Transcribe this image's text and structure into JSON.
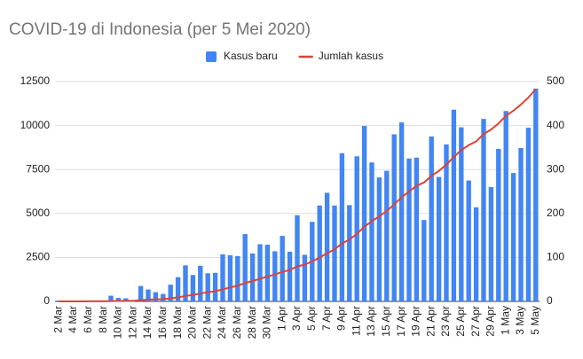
{
  "chart_data": {
    "type": "bar",
    "title": "COVID-19 di Indonesia (per 5 Mei 2020)",
    "categories": [
      "2 Mar",
      null,
      "4 Mar",
      null,
      "6 Mar",
      null,
      "8 Mar",
      null,
      "10 Mar",
      null,
      "12 Mar",
      null,
      "14 Mar",
      null,
      "16 Mar",
      null,
      "18 Mar",
      null,
      "20 Mar",
      null,
      "22 Mar",
      null,
      "24 Mar",
      null,
      "26 Mar",
      null,
      "28 Mar",
      null,
      "30 Mar",
      null,
      "1 Apr",
      null,
      "3 Apr",
      null,
      "5 Apr",
      null,
      "7 Apr",
      null,
      "9 Apr",
      null,
      "11 Apr",
      null,
      "13 Apr",
      null,
      "15 Apr",
      null,
      "17 Apr",
      null,
      "19 Apr",
      null,
      "21 Apr",
      null,
      "23 Apr",
      null,
      "25 Apr",
      null,
      "27 Apr",
      null,
      "29 Apr",
      null,
      "1 May",
      null,
      "3 May",
      null,
      "5 May"
    ],
    "series": [
      {
        "name": "Kasus baru",
        "type": "bar",
        "axis": "y2",
        "color": "#4285f4",
        "values": [
          2,
          0,
          0,
          0,
          2,
          0,
          2,
          13,
          8,
          7,
          0,
          35,
          27,
          21,
          17,
          38,
          55,
          82,
          60,
          81,
          64,
          65,
          107,
          105,
          103,
          153,
          109,
          130,
          129,
          114,
          149,
          113,
          196,
          106,
          181,
          218,
          247,
          218,
          337,
          219,
          330,
          399,
          316,
          282,
          297,
          380,
          407,
          325,
          327,
          185,
          375,
          283,
          357,
          436,
          396,
          275,
          214,
          415,
          260,
          347,
          433,
          292,
          349,
          395,
          484
        ]
      },
      {
        "name": "Jumlah kasus",
        "type": "line",
        "color": "#db4437",
        "values": [
          2,
          2,
          2,
          2,
          4,
          4,
          6,
          19,
          27,
          34,
          34,
          69,
          96,
          117,
          134,
          172,
          227,
          309,
          369,
          450,
          514,
          579,
          686,
          790,
          893,
          1046,
          1155,
          1285,
          1414,
          1528,
          1677,
          1790,
          1986,
          2092,
          2273,
          2491,
          2738,
          2956,
          3293,
          3512,
          3842,
          4241,
          4557,
          4839,
          5136,
          5516,
          5923,
          6248,
          6575,
          6760,
          7135,
          7418,
          7775,
          8211,
          8607,
          8882,
          9096,
          9511,
          9771,
          10118,
          10551,
          10843,
          11192,
          11587,
          12071
        ]
      }
    ],
    "ylim": [
      0,
      12500
    ],
    "yticks": [
      0,
      2500,
      5000,
      7500,
      10000,
      12500
    ],
    "y2lim": [
      0,
      500
    ],
    "y2ticks": [
      0,
      100,
      200,
      300,
      400,
      500
    ],
    "grid": true,
    "legend": "top"
  }
}
